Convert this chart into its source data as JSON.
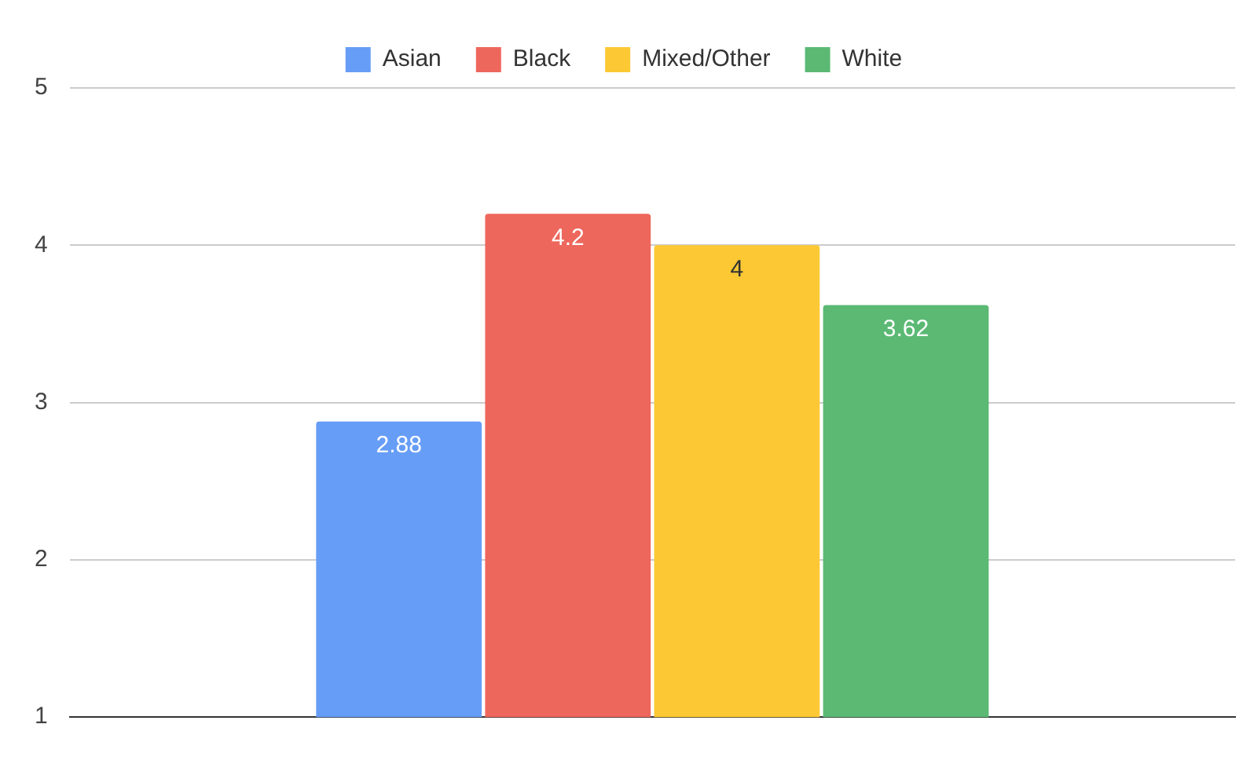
{
  "chart_data": {
    "type": "bar",
    "categories": [
      null
    ],
    "series": [
      {
        "name": "Asian",
        "color": "#669df6",
        "values": [
          2.88
        ]
      },
      {
        "name": "Black",
        "color": "#ee675c",
        "values": [
          4.2
        ]
      },
      {
        "name": "Mixed/Other",
        "color": "#fcc934",
        "values": [
          4
        ]
      },
      {
        "name": "White",
        "color": "#5bb974",
        "values": [
          3.62
        ]
      }
    ],
    "ylim": [
      1,
      5
    ],
    "yticks": [
      1,
      2,
      3,
      4,
      5
    ],
    "grid": "y",
    "legend": "top",
    "data_labels": true
  }
}
